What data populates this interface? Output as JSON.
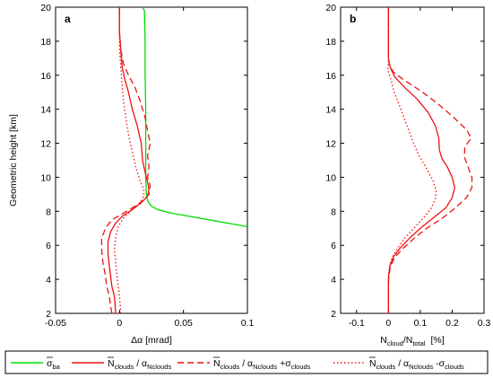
{
  "chart_data": [
    {
      "type": "line",
      "panel_label": "a",
      "xlabel": "Δα [mrad]",
      "ylabel": "Geometric height [km]",
      "xlim": [
        -0.05,
        0.1
      ],
      "ylim": [
        2,
        20
      ],
      "xticks": [
        "-0.05",
        "0",
        "0.05",
        "0.1"
      ],
      "xtick_values": [
        -0.05,
        0,
        0.05,
        0.1
      ],
      "yticks": [
        "2",
        "4",
        "6",
        "8",
        "10",
        "12",
        "14",
        "16",
        "18",
        "20"
      ],
      "ytick_values": [
        2,
        4,
        6,
        8,
        10,
        12,
        14,
        16,
        18,
        20
      ],
      "series": [
        {
          "name": "σ_ba",
          "color": "#00dd00",
          "style": "solid",
          "points": [
            [
              0.1,
              7.1
            ],
            [
              0.085,
              7.3
            ],
            [
              0.07,
              7.5
            ],
            [
              0.055,
              7.7
            ],
            [
              0.04,
              7.9
            ],
            [
              0.03,
              8.1
            ],
            [
              0.025,
              8.3
            ],
            [
              0.022,
              8.6
            ],
            [
              0.021,
              9.0
            ],
            [
              0.0205,
              10
            ],
            [
              0.0205,
              12
            ],
            [
              0.0205,
              14
            ],
            [
              0.02,
              16
            ],
            [
              0.02,
              18
            ],
            [
              0.0195,
              19.8
            ],
            [
              0.018,
              20
            ]
          ]
        },
        {
          "name": "N_clouds/α_Nclouds",
          "color": "#ee1111",
          "style": "solid",
          "points": [
            [
              -0.003,
              2.0
            ],
            [
              -0.004,
              3.0
            ],
            [
              -0.006,
              3.6
            ],
            [
              -0.007,
              4.2
            ],
            [
              -0.008,
              4.8
            ],
            [
              -0.009,
              5.5
            ],
            [
              -0.009,
              6.2
            ],
            [
              -0.007,
              6.8
            ],
            [
              -0.003,
              7.3
            ],
            [
              0.002,
              7.7
            ],
            [
              0.01,
              8.1
            ],
            [
              0.017,
              8.5
            ],
            [
              0.022,
              8.9
            ],
            [
              0.023,
              9.3
            ],
            [
              0.022,
              9.7
            ],
            [
              0.02,
              10.3
            ],
            [
              0.018,
              11.0
            ],
            [
              0.017,
              12.0
            ],
            [
              0.014,
              13.0
            ],
            [
              0.01,
              14.0
            ],
            [
              0.007,
              15.0
            ],
            [
              0.004,
              15.8
            ],
            [
              0.002,
              16.5
            ],
            [
              0.001,
              17.5
            ],
            [
              0.0,
              18.5
            ],
            [
              0.0,
              20
            ]
          ]
        },
        {
          "name": "N_clouds/α_Nclouds + σ_clouds",
          "color": "#ee1111",
          "style": "dashed",
          "points": [
            [
              -0.006,
              2.0
            ],
            [
              -0.008,
              3.0
            ],
            [
              -0.01,
              3.6
            ],
            [
              -0.011,
              4.2
            ],
            [
              -0.013,
              5.0
            ],
            [
              -0.014,
              5.8
            ],
            [
              -0.014,
              6.4
            ],
            [
              -0.011,
              7.0
            ],
            [
              -0.006,
              7.5
            ],
            [
              0.001,
              7.8
            ],
            [
              0.01,
              8.2
            ],
            [
              0.018,
              8.6
            ],
            [
              0.023,
              9.0
            ],
            [
              0.024,
              9.5
            ],
            [
              0.022,
              10.0
            ],
            [
              0.023,
              10.6
            ],
            [
              0.022,
              11.3
            ],
            [
              0.024,
              12.0
            ],
            [
              0.022,
              12.7
            ],
            [
              0.02,
              13.5
            ],
            [
              0.016,
              14.5
            ],
            [
              0.012,
              15.3
            ],
            [
              0.007,
              16.0
            ],
            [
              0.003,
              16.7
            ],
            [
              0.001,
              17.5
            ],
            [
              0.0,
              18.5
            ],
            [
              0.0,
              20
            ]
          ]
        },
        {
          "name": "N_clouds/α_Nclouds - σ_clouds",
          "color": "#ee1111",
          "style": "dotted",
          "points": [
            [
              0.001,
              2.0
            ],
            [
              0.0,
              3.0
            ],
            [
              -0.001,
              3.6
            ],
            [
              -0.002,
              4.2
            ],
            [
              -0.003,
              5.0
            ],
            [
              -0.004,
              5.8
            ],
            [
              -0.003,
              6.5
            ],
            [
              -0.001,
              7.1
            ],
            [
              0.003,
              7.6
            ],
            [
              0.01,
              8.1
            ],
            [
              0.016,
              8.5
            ],
            [
              0.019,
              8.9
            ],
            [
              0.019,
              9.3
            ],
            [
              0.016,
              9.8
            ],
            [
              0.013,
              10.5
            ],
            [
              0.01,
              11.5
            ],
            [
              0.007,
              12.5
            ],
            [
              0.005,
              13.5
            ],
            [
              0.003,
              14.5
            ],
            [
              0.002,
              15.5
            ],
            [
              0.001,
              16.5
            ],
            [
              0.0,
              17.5
            ],
            [
              0.0,
              20
            ]
          ]
        }
      ]
    },
    {
      "type": "line",
      "panel_label": "b",
      "xlabel": "N_cloud/N_total [%]",
      "ylabel": "",
      "xlim": [
        -0.15,
        0.3
      ],
      "ylim": [
        2,
        20
      ],
      "xticks": [
        "-0.1",
        "0",
        "0.1",
        "0.2",
        "0.3"
      ],
      "xtick_values": [
        -0.1,
        0,
        0.1,
        0.2,
        0.3
      ],
      "yticks": [
        "2",
        "4",
        "6",
        "8",
        "10",
        "12",
        "14",
        "16",
        "18",
        "20"
      ],
      "ytick_values": [
        2,
        4,
        6,
        8,
        10,
        12,
        14,
        16,
        18,
        20
      ],
      "series": [
        {
          "name": "N_clouds/α_Nclouds",
          "color": "#ee1111",
          "style": "solid",
          "points": [
            [
              0.0,
              2.0
            ],
            [
              0.0,
              3.8
            ],
            [
              0.001,
              4.3
            ],
            [
              0.005,
              4.8
            ],
            [
              0.015,
              5.3
            ],
            [
              0.035,
              5.8
            ],
            [
              0.065,
              6.4
            ],
            [
              0.1,
              7.0
            ],
            [
              0.14,
              7.6
            ],
            [
              0.18,
              8.2
            ],
            [
              0.2,
              8.8
            ],
            [
              0.208,
              9.4
            ],
            [
              0.2,
              10.0
            ],
            [
              0.185,
              10.6
            ],
            [
              0.168,
              11.1
            ],
            [
              0.16,
              11.6
            ],
            [
              0.158,
              12.3
            ],
            [
              0.148,
              13.0
            ],
            [
              0.125,
              13.8
            ],
            [
              0.09,
              14.6
            ],
            [
              0.05,
              15.3
            ],
            [
              0.02,
              15.9
            ],
            [
              0.005,
              16.5
            ],
            [
              0.0,
              17.0
            ],
            [
              0.0,
              20
            ]
          ]
        },
        {
          "name": "N_clouds/α_Nclouds + σ_clouds",
          "color": "#ee1111",
          "style": "dashed",
          "points": [
            [
              0.0,
              2.0
            ],
            [
              0.0,
              3.8
            ],
            [
              0.002,
              4.3
            ],
            [
              0.007,
              4.8
            ],
            [
              0.02,
              5.3
            ],
            [
              0.045,
              5.8
            ],
            [
              0.08,
              6.4
            ],
            [
              0.12,
              7.0
            ],
            [
              0.17,
              7.6
            ],
            [
              0.21,
              8.2
            ],
            [
              0.245,
              8.8
            ],
            [
              0.262,
              9.4
            ],
            [
              0.262,
              10.0
            ],
            [
              0.25,
              10.6
            ],
            [
              0.238,
              11.2
            ],
            [
              0.24,
              11.8
            ],
            [
              0.26,
              12.3
            ],
            [
              0.245,
              12.8
            ],
            [
              0.2,
              13.6
            ],
            [
              0.15,
              14.4
            ],
            [
              0.1,
              15.1
            ],
            [
              0.05,
              15.7
            ],
            [
              0.015,
              16.2
            ],
            [
              0.003,
              16.6
            ],
            [
              0.0,
              17.0
            ],
            [
              0.0,
              20
            ]
          ]
        },
        {
          "name": "N_clouds/α_Nclouds - σ_clouds",
          "color": "#ee1111",
          "style": "dotted",
          "points": [
            [
              0.0,
              2.0
            ],
            [
              0.0,
              3.8
            ],
            [
              0.001,
              4.3
            ],
            [
              0.004,
              4.8
            ],
            [
              0.012,
              5.3
            ],
            [
              0.028,
              5.8
            ],
            [
              0.05,
              6.4
            ],
            [
              0.08,
              7.0
            ],
            [
              0.11,
              7.6
            ],
            [
              0.135,
              8.2
            ],
            [
              0.148,
              8.8
            ],
            [
              0.15,
              9.2
            ],
            [
              0.14,
              9.8
            ],
            [
              0.12,
              10.5
            ],
            [
              0.095,
              11.3
            ],
            [
              0.075,
              12.2
            ],
            [
              0.055,
              13.2
            ],
            [
              0.035,
              14.2
            ],
            [
              0.018,
              15.0
            ],
            [
              0.007,
              15.8
            ],
            [
              -0.002,
              16.3
            ],
            [
              0.0,
              16.8
            ],
            [
              0.0,
              20
            ]
          ]
        }
      ]
    }
  ],
  "legend": {
    "items": [
      {
        "base": "σ",
        "sub": "ba",
        "overline": true,
        "color": "#00dd00",
        "style": "solid"
      },
      {
        "base": "N",
        "sub": "clouds",
        "mid": " / α",
        "sub2": "Nclouds",
        "suffix": "",
        "suffixSub": "",
        "color": "#ee1111",
        "style": "solid"
      },
      {
        "base": "N",
        "sub": "clouds",
        "mid": " / α",
        "sub2": "Nclouds",
        "suffix": " +σ",
        "suffixSub": "clouds",
        "color": "#ee1111",
        "style": "dashed"
      },
      {
        "base": "N",
        "sub": "clouds",
        "mid": " / α",
        "sub2": "Nclouds",
        "suffix": " -σ",
        "suffixSub": "clouds",
        "color": "#ee1111",
        "style": "dotted"
      }
    ]
  },
  "labels": {
    "xlabel_a": "Δα  [mrad]",
    "ylabel_a": "Geometric height [km]",
    "xlabel_b_main": "N",
    "xlabel_b_sub1": "cloud",
    "xlabel_b_mid": "/N",
    "xlabel_b_sub2": "total",
    "xlabel_b_unit": "[%]"
  }
}
